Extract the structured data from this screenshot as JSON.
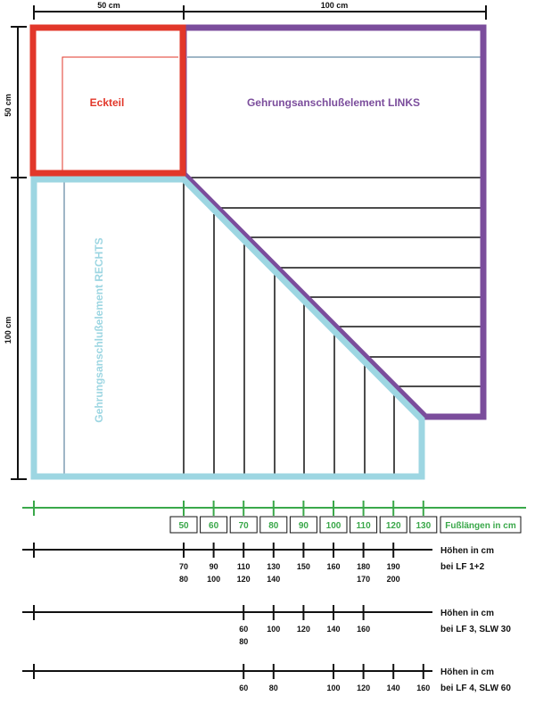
{
  "colors": {
    "red": "#e2372a",
    "purple": "#7b4d9c",
    "lightblue": "#9dd6e2",
    "green": "#3aa84a",
    "darkblue": "#3f6e8e",
    "black": "#111111"
  },
  "dimensions": {
    "top_left": "50 cm",
    "top_right": "100 cm",
    "side_top": "50 cm",
    "side_bottom": "100 cm"
  },
  "panels": {
    "corner": "Eckteil",
    "left_miter": "Gehrungsanschlußelement LINKS",
    "right_miter": "Gehrungsanschlußelement RECHTS"
  },
  "feet": {
    "values": [
      "50",
      "60",
      "70",
      "80",
      "90",
      "100",
      "110",
      "120",
      "130"
    ],
    "legend": "Fußlängen in cm"
  },
  "rows": [
    {
      "label1": "Höhen in cm",
      "label2": "bei LF 1+2",
      "ticks": [
        {
          "pos": 0,
          "top": "70",
          "bottom": "80"
        },
        {
          "pos": 1,
          "top": "90",
          "bottom": "100"
        },
        {
          "pos": 2,
          "top": "110",
          "bottom": "120"
        },
        {
          "pos": 3,
          "top": "130",
          "bottom": "140"
        },
        {
          "pos": 4,
          "top": "150",
          "bottom": ""
        },
        {
          "pos": 5,
          "top": "160",
          "bottom": ""
        },
        {
          "pos": 6,
          "top": "180",
          "bottom": "170"
        },
        {
          "pos": 7,
          "top": "190",
          "bottom": "200"
        }
      ]
    },
    {
      "label1": "Höhen in cm",
      "label2": "bei LF 3, SLW 30",
      "ticks": [
        {
          "pos": 2,
          "top": "60",
          "bottom": "80"
        },
        {
          "pos": 3,
          "top": "100",
          "bottom": ""
        },
        {
          "pos": 4,
          "top": "120",
          "bottom": ""
        },
        {
          "pos": 5,
          "top": "140",
          "bottom": ""
        },
        {
          "pos": 6,
          "top": "160",
          "bottom": ""
        }
      ]
    },
    {
      "label1": "Höhen in cm",
      "label2": "bei LF 4, SLW 60",
      "ticks": [
        {
          "pos": 2,
          "top": "60",
          "bottom": ""
        },
        {
          "pos": 3,
          "top": "80",
          "bottom": ""
        },
        {
          "pos": 5,
          "top": "100",
          "bottom": ""
        },
        {
          "pos": 6,
          "top": "120",
          "bottom": ""
        },
        {
          "pos": 7,
          "top": "140",
          "bottom": ""
        },
        {
          "pos": 8,
          "top": "160",
          "bottom": ""
        }
      ]
    }
  ]
}
